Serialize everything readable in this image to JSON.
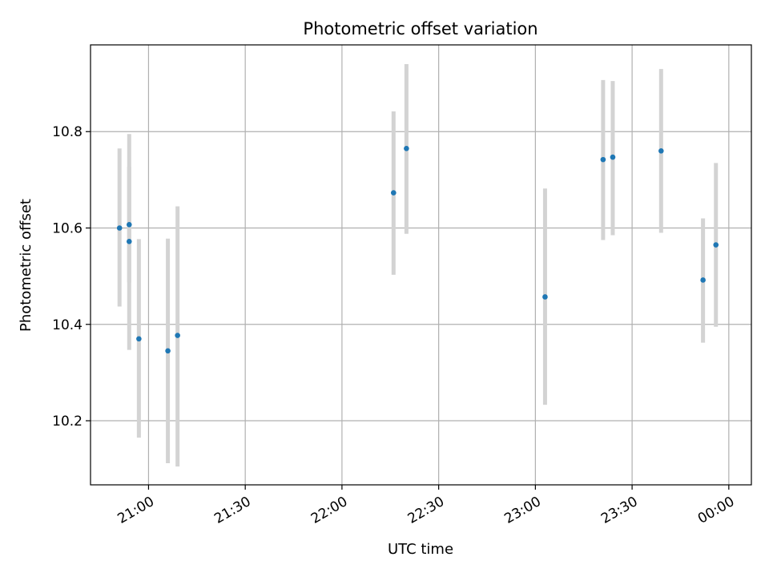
{
  "chart_data": {
    "type": "scatter",
    "title": "Photometric offset variation",
    "xlabel": "UTC time",
    "ylabel": "Photometric offset",
    "x_axis": {
      "kind": "time",
      "range": [
        "20:41",
        "00:06"
      ],
      "ticks": [
        {
          "t": "20:59",
          "label": "21:00"
        },
        {
          "t": "21:29",
          "label": "21:30"
        },
        {
          "t": "21:59",
          "label": "22:00"
        },
        {
          "t": "22:29",
          "label": "22:30"
        },
        {
          "t": "22:59",
          "label": "23:00"
        },
        {
          "t": "23:29",
          "label": "23:30"
        },
        {
          "t": "23:59",
          "label": "00:00"
        }
      ]
    },
    "y_axis": {
      "range": [
        10.067,
        10.98
      ],
      "ticks": [
        {
          "value": 10.2,
          "label": "10.2"
        },
        {
          "value": 10.4,
          "label": "10.4"
        },
        {
          "value": 10.6,
          "label": "10.6"
        },
        {
          "value": 10.8,
          "label": "10.8"
        }
      ]
    },
    "grid": true,
    "points": [
      {
        "t": "20:50",
        "y": 10.6,
        "yerr_low": 10.437,
        "yerr_high": 10.765
      },
      {
        "t": "20:53",
        "y": 10.572,
        "yerr_low": 10.347,
        "yerr_high": 10.795
      },
      {
        "t": "20:53",
        "y": 10.607,
        "yerr_low": 10.487,
        "yerr_high": 10.727
      },
      {
        "t": "20:56",
        "y": 10.37,
        "yerr_low": 10.165,
        "yerr_high": 10.577
      },
      {
        "t": "21:05",
        "y": 10.345,
        "yerr_low": 10.112,
        "yerr_high": 10.578
      },
      {
        "t": "21:08",
        "y": 10.377,
        "yerr_low": 10.105,
        "yerr_high": 10.645
      },
      {
        "t": "22:15",
        "y": 10.673,
        "yerr_low": 10.503,
        "yerr_high": 10.842
      },
      {
        "t": "22:19",
        "y": 10.765,
        "yerr_low": 10.588,
        "yerr_high": 10.94
      },
      {
        "t": "23:02",
        "y": 10.457,
        "yerr_low": 10.233,
        "yerr_high": 10.682
      },
      {
        "t": "23:20",
        "y": 10.742,
        "yerr_low": 10.575,
        "yerr_high": 10.907
      },
      {
        "t": "23:23",
        "y": 10.747,
        "yerr_low": 10.585,
        "yerr_high": 10.905
      },
      {
        "t": "23:38",
        "y": 10.76,
        "yerr_low": 10.59,
        "yerr_high": 10.93
      },
      {
        "t": "23:51",
        "y": 10.492,
        "yerr_low": 10.362,
        "yerr_high": 10.62
      },
      {
        "t": "23:55",
        "y": 10.565,
        "yerr_low": 10.395,
        "yerr_high": 10.735
      }
    ],
    "colors": {
      "point": "#1f77b4",
      "error_bar": "#d3d3d3",
      "grid": "#b0b0b0",
      "axes": "#000000"
    }
  }
}
